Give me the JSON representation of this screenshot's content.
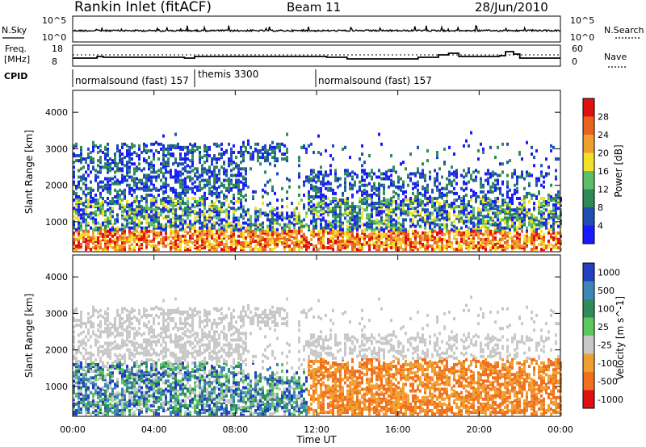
{
  "header": {
    "station": "Rankin Inlet (fitACF)",
    "beam": "Beam 11",
    "date": "28/Jun/2010"
  },
  "noise_panel": {
    "left_label": "N.Sky",
    "right_label": "N.Search",
    "left_ticks": [
      "10^5",
      "10^0"
    ],
    "right_ticks": [
      "10^5",
      "10^0"
    ]
  },
  "freq_panel": {
    "left_label_1": "Freq.",
    "left_label_2": "[MHz]",
    "right_label": "Nave",
    "left_ticks": [
      "18",
      "8"
    ],
    "right_ticks": [
      "60",
      "0"
    ]
  },
  "cpid_panel": {
    "label": "CPID",
    "segments": [
      {
        "label": "normalsound (fast) 157",
        "start_hour": 0,
        "end_hour": 6
      },
      {
        "label": "themis 3300",
        "start_hour": 6,
        "end_hour": 12
      },
      {
        "label": "normalsound (fast) 157",
        "start_hour": 12,
        "end_hour": 24
      }
    ]
  },
  "chart_data": [
    {
      "type": "heatmap",
      "title": "",
      "xlabel": "Time UT",
      "ylabel": "Slant Range [km]",
      "xlim": [
        0,
        24
      ],
      "ylim": [
        180,
        4600
      ],
      "x_tick_labels": [
        "00:00",
        "04:00",
        "08:00",
        "12:00",
        "16:00",
        "20:00",
        "00:00"
      ],
      "y_tick_labels": [
        "1000",
        "2000",
        "3000",
        "4000"
      ],
      "colorbar": {
        "label": "Power [dB]",
        "ticks": [
          "4",
          "8",
          "12",
          "16",
          "20",
          "24",
          "28"
        ],
        "colors": [
          "#1a1aff",
          "#1f4fb0",
          "#2e8b57",
          "#5bbf6a",
          "#f2e02a",
          "#f0a030",
          "#e8641e",
          "#e01010"
        ]
      },
      "scatter_regions": [
        {
          "name": "near-range band",
          "x": [
            0,
            24
          ],
          "y": [
            180,
            700
          ],
          "level": "high"
        },
        {
          "name": "1000 km band",
          "x": [
            0,
            24
          ],
          "y": [
            700,
            1600
          ],
          "level": "medium"
        },
        {
          "name": "2000 km band",
          "x": [
            0,
            12.5
          ],
          "y": [
            1600,
            3100
          ],
          "level": "medium"
        }
      ]
    },
    {
      "type": "heatmap",
      "title": "",
      "xlabel": "Time UT",
      "ylabel": "Slant Range [km]",
      "xlim": [
        0,
        24
      ],
      "ylim": [
        180,
        4600
      ],
      "x_tick_labels": [
        "00:00",
        "04:00",
        "08:00",
        "12:00",
        "16:00",
        "20:00",
        "00:00"
      ],
      "y_tick_labels": [
        "1000",
        "2000",
        "3000",
        "4000"
      ],
      "colorbar": {
        "label": "Velocity [m s^-1]",
        "ticks": [
          "1000",
          "500",
          "100",
          "25",
          "-25",
          "-100",
          "-500",
          "-1000"
        ],
        "colors": [
          "#2040c0",
          "#3f86b8",
          "#2f8b5a",
          "#5ac85a",
          "#c8c8c8",
          "#f0a030",
          "#f07020",
          "#e01010"
        ]
      }
    }
  ]
}
